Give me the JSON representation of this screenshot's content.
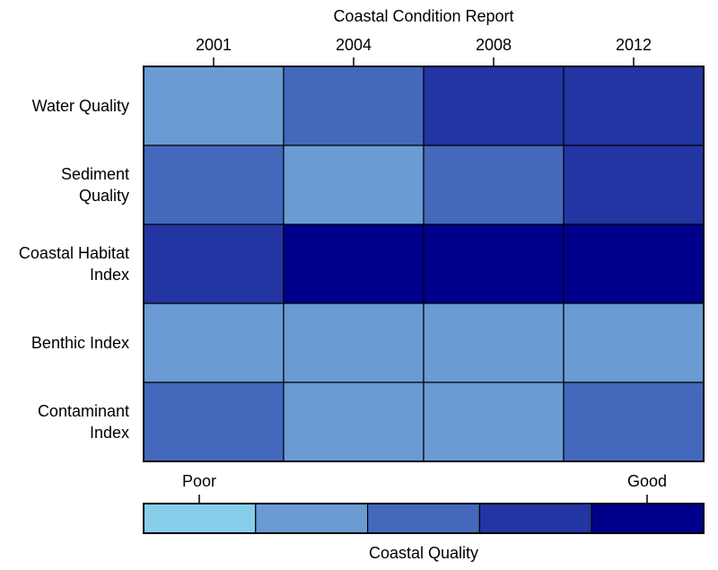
{
  "chart_data": {
    "type": "heatmap",
    "title": "Coastal Condition Report",
    "columns": [
      "2001",
      "2004",
      "2008",
      "2012"
    ],
    "rows": [
      {
        "label": [
          "Water Quality"
        ],
        "levels": [
          1,
          2,
          3,
          3
        ]
      },
      {
        "label": [
          "Sediment",
          "Quality"
        ],
        "levels": [
          2,
          1,
          2,
          3
        ]
      },
      {
        "label": [
          "Coastal Habitat",
          "Index"
        ],
        "levels": [
          3,
          4,
          4,
          4
        ]
      },
      {
        "label": [
          "Benthic Index"
        ],
        "levels": [
          1,
          1,
          1,
          1
        ]
      },
      {
        "label": [
          "Contaminant",
          "Index"
        ],
        "levels": [
          2,
          1,
          1,
          2
        ]
      }
    ],
    "scale": {
      "title": "Coastal Quality",
      "low_label": "Poor",
      "high_label": "Good",
      "colors": [
        "#87ceeb",
        "#6a9bd3",
        "#4468bc",
        "#2235a3",
        "#00008b"
      ]
    },
    "grid": true,
    "legend_position": "bottom"
  }
}
